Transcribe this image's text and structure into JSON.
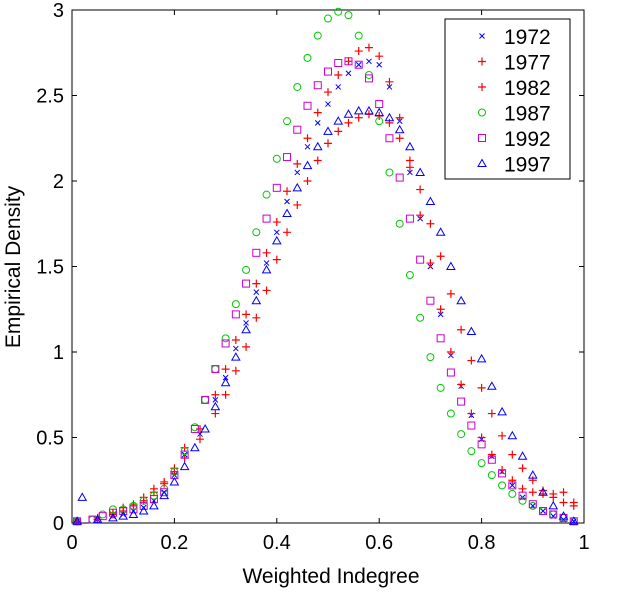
{
  "chart_data": {
    "type": "scatter",
    "title": "",
    "xlabel": "Weighted Indegree",
    "ylabel": "Empirical Density",
    "xlim": [
      0,
      1
    ],
    "ylim": [
      0,
      3
    ],
    "xticks": [
      0,
      0.2,
      0.4,
      0.6,
      0.8,
      1
    ],
    "xtick_labels": [
      "0",
      "0.2",
      "0.4",
      "0.6",
      "0.8",
      "1"
    ],
    "yticks": [
      0,
      0.5,
      1,
      1.5,
      2,
      2.5,
      3
    ],
    "ytick_labels": [
      "0",
      "0.5",
      "1",
      "1.5",
      "2",
      "2.5",
      "3"
    ],
    "grid": false,
    "legend_position": "top-right",
    "series": [
      {
        "name": "1972",
        "marker": "x",
        "color": "#0000ff",
        "points": [
          [
            0.01,
            0.01
          ],
          [
            0.05,
            0.02
          ],
          [
            0.08,
            0.04
          ],
          [
            0.1,
            0.05
          ],
          [
            0.12,
            0.07
          ],
          [
            0.14,
            0.09
          ],
          [
            0.16,
            0.13
          ],
          [
            0.18,
            0.18
          ],
          [
            0.2,
            0.28
          ],
          [
            0.22,
            0.4
          ],
          [
            0.25,
            0.52
          ],
          [
            0.28,
            0.72
          ],
          [
            0.3,
            0.85
          ],
          [
            0.32,
            1.02
          ],
          [
            0.34,
            1.17
          ],
          [
            0.36,
            1.35
          ],
          [
            0.38,
            1.52
          ],
          [
            0.4,
            1.7
          ],
          [
            0.42,
            1.88
          ],
          [
            0.44,
            2.05
          ],
          [
            0.46,
            2.2
          ],
          [
            0.48,
            2.34
          ],
          [
            0.5,
            2.45
          ],
          [
            0.52,
            2.55
          ],
          [
            0.54,
            2.63
          ],
          [
            0.56,
            2.68
          ],
          [
            0.58,
            2.7
          ],
          [
            0.6,
            2.68
          ],
          [
            0.62,
            2.55
          ],
          [
            0.64,
            2.35
          ],
          [
            0.66,
            2.05
          ],
          [
            0.68,
            1.78
          ],
          [
            0.7,
            1.5
          ],
          [
            0.72,
            1.22
          ],
          [
            0.74,
            0.98
          ],
          [
            0.76,
            0.8
          ],
          [
            0.78,
            0.63
          ],
          [
            0.8,
            0.49
          ],
          [
            0.82,
            0.39
          ],
          [
            0.84,
            0.3
          ],
          [
            0.86,
            0.22
          ],
          [
            0.88,
            0.15
          ],
          [
            0.9,
            0.1
          ],
          [
            0.92,
            0.07
          ],
          [
            0.94,
            0.04
          ],
          [
            0.96,
            0.02
          ],
          [
            0.98,
            0.01
          ]
        ]
      },
      {
        "name": "1977",
        "marker": "+",
        "color": "#ff0000",
        "points": [
          [
            0.01,
            0.01
          ],
          [
            0.05,
            0.02
          ],
          [
            0.08,
            0.05
          ],
          [
            0.1,
            0.07
          ],
          [
            0.12,
            0.1
          ],
          [
            0.14,
            0.13
          ],
          [
            0.16,
            0.18
          ],
          [
            0.18,
            0.24
          ],
          [
            0.2,
            0.32
          ],
          [
            0.22,
            0.44
          ],
          [
            0.25,
            0.55
          ],
          [
            0.28,
            0.75
          ],
          [
            0.3,
            0.9
          ],
          [
            0.32,
            1.07
          ],
          [
            0.34,
            1.22
          ],
          [
            0.36,
            1.4
          ],
          [
            0.38,
            1.58
          ],
          [
            0.4,
            1.76
          ],
          [
            0.42,
            1.94
          ],
          [
            0.44,
            2.1
          ],
          [
            0.46,
            2.25
          ],
          [
            0.48,
            2.4
          ],
          [
            0.5,
            2.52
          ],
          [
            0.52,
            2.62
          ],
          [
            0.54,
            2.7
          ],
          [
            0.56,
            2.76
          ],
          [
            0.58,
            2.78
          ],
          [
            0.6,
            2.73
          ],
          [
            0.62,
            2.58
          ],
          [
            0.64,
            2.37
          ],
          [
            0.66,
            2.08
          ],
          [
            0.68,
            1.8
          ],
          [
            0.7,
            1.52
          ],
          [
            0.72,
            1.25
          ],
          [
            0.74,
            1.0
          ],
          [
            0.76,
            0.81
          ],
          [
            0.78,
            0.64
          ],
          [
            0.8,
            0.5
          ],
          [
            0.82,
            0.4
          ],
          [
            0.84,
            0.31
          ],
          [
            0.86,
            0.25
          ],
          [
            0.88,
            0.2
          ],
          [
            0.9,
            0.18
          ],
          [
            0.92,
            0.17
          ],
          [
            0.94,
            0.17
          ],
          [
            0.96,
            0.18
          ],
          [
            0.98,
            0.12
          ]
        ]
      },
      {
        "name": "1982",
        "marker": "+",
        "color": "#ff0000",
        "points": [
          [
            0.01,
            0.01
          ],
          [
            0.05,
            0.03
          ],
          [
            0.08,
            0.06
          ],
          [
            0.1,
            0.09
          ],
          [
            0.12,
            0.11
          ],
          [
            0.14,
            0.15
          ],
          [
            0.16,
            0.2
          ],
          [
            0.18,
            0.23
          ],
          [
            0.2,
            0.3
          ],
          [
            0.22,
            0.38
          ],
          [
            0.25,
            0.49
          ],
          [
            0.28,
            0.64
          ],
          [
            0.3,
            0.75
          ],
          [
            0.32,
            0.89
          ],
          [
            0.34,
            1.03
          ],
          [
            0.36,
            1.2
          ],
          [
            0.38,
            1.36
          ],
          [
            0.4,
            1.54
          ],
          [
            0.42,
            1.7
          ],
          [
            0.44,
            1.86
          ],
          [
            0.46,
            2.0
          ],
          [
            0.48,
            2.12
          ],
          [
            0.5,
            2.22
          ],
          [
            0.52,
            2.29
          ],
          [
            0.54,
            2.34
          ],
          [
            0.56,
            2.37
          ],
          [
            0.58,
            2.39
          ],
          [
            0.6,
            2.38
          ],
          [
            0.62,
            2.34
          ],
          [
            0.64,
            2.25
          ],
          [
            0.66,
            2.12
          ],
          [
            0.68,
            1.95
          ],
          [
            0.7,
            1.75
          ],
          [
            0.72,
            1.56
          ],
          [
            0.74,
            1.34
          ],
          [
            0.76,
            1.13
          ],
          [
            0.78,
            0.95
          ],
          [
            0.8,
            0.79
          ],
          [
            0.82,
            0.64
          ],
          [
            0.84,
            0.51
          ],
          [
            0.86,
            0.4
          ],
          [
            0.88,
            0.32
          ],
          [
            0.9,
            0.25
          ],
          [
            0.92,
            0.19
          ],
          [
            0.94,
            0.15
          ],
          [
            0.96,
            0.12
          ],
          [
            0.98,
            0.1
          ]
        ]
      },
      {
        "name": "1987",
        "marker": "o",
        "color": "#00cc00",
        "points": [
          [
            0.01,
            0.01
          ],
          [
            0.04,
            0.02
          ],
          [
            0.06,
            0.05
          ],
          [
            0.08,
            0.08
          ],
          [
            0.1,
            0.08
          ],
          [
            0.12,
            0.1
          ],
          [
            0.14,
            0.13
          ],
          [
            0.16,
            0.16
          ],
          [
            0.18,
            0.2
          ],
          [
            0.2,
            0.3
          ],
          [
            0.22,
            0.42
          ],
          [
            0.24,
            0.56
          ],
          [
            0.26,
            0.72
          ],
          [
            0.28,
            0.9
          ],
          [
            0.3,
            1.08
          ],
          [
            0.32,
            1.28
          ],
          [
            0.34,
            1.48
          ],
          [
            0.36,
            1.7
          ],
          [
            0.38,
            1.92
          ],
          [
            0.4,
            2.13
          ],
          [
            0.42,
            2.35
          ],
          [
            0.44,
            2.55
          ],
          [
            0.46,
            2.72
          ],
          [
            0.48,
            2.85
          ],
          [
            0.5,
            2.95
          ],
          [
            0.52,
            2.99
          ],
          [
            0.54,
            2.97
          ],
          [
            0.56,
            2.85
          ],
          [
            0.58,
            2.62
          ],
          [
            0.6,
            2.35
          ],
          [
            0.62,
            2.05
          ],
          [
            0.64,
            1.75
          ],
          [
            0.66,
            1.45
          ],
          [
            0.68,
            1.2
          ],
          [
            0.7,
            0.97
          ],
          [
            0.72,
            0.79
          ],
          [
            0.74,
            0.64
          ],
          [
            0.76,
            0.52
          ],
          [
            0.78,
            0.42
          ],
          [
            0.8,
            0.35
          ],
          [
            0.82,
            0.28
          ],
          [
            0.84,
            0.22
          ],
          [
            0.86,
            0.17
          ],
          [
            0.88,
            0.13
          ],
          [
            0.9,
            0.1
          ],
          [
            0.92,
            0.07
          ],
          [
            0.94,
            0.05
          ],
          [
            0.96,
            0.03
          ]
        ]
      },
      {
        "name": "1992",
        "marker": "square",
        "color": "#cc00cc",
        "points": [
          [
            0.01,
            0.01
          ],
          [
            0.04,
            0.02
          ],
          [
            0.06,
            0.04
          ],
          [
            0.08,
            0.06
          ],
          [
            0.1,
            0.07
          ],
          [
            0.12,
            0.08
          ],
          [
            0.14,
            0.1
          ],
          [
            0.16,
            0.14
          ],
          [
            0.18,
            0.18
          ],
          [
            0.2,
            0.28
          ],
          [
            0.22,
            0.4
          ],
          [
            0.24,
            0.55
          ],
          [
            0.26,
            0.72
          ],
          [
            0.28,
            0.9
          ],
          [
            0.3,
            1.05
          ],
          [
            0.32,
            1.22
          ],
          [
            0.34,
            1.4
          ],
          [
            0.36,
            1.58
          ],
          [
            0.38,
            1.78
          ],
          [
            0.4,
            1.96
          ],
          [
            0.42,
            2.14
          ],
          [
            0.44,
            2.3
          ],
          [
            0.46,
            2.44
          ],
          [
            0.48,
            2.56
          ],
          [
            0.5,
            2.64
          ],
          [
            0.52,
            2.69
          ],
          [
            0.54,
            2.7
          ],
          [
            0.56,
            2.68
          ],
          [
            0.58,
            2.6
          ],
          [
            0.6,
            2.45
          ],
          [
            0.62,
            2.25
          ],
          [
            0.64,
            2.02
          ],
          [
            0.66,
            1.78
          ],
          [
            0.68,
            1.54
          ],
          [
            0.7,
            1.3
          ],
          [
            0.72,
            1.08
          ],
          [
            0.74,
            0.88
          ],
          [
            0.76,
            0.71
          ],
          [
            0.78,
            0.57
          ],
          [
            0.8,
            0.46
          ],
          [
            0.82,
            0.37
          ],
          [
            0.84,
            0.29
          ],
          [
            0.86,
            0.22
          ],
          [
            0.88,
            0.16
          ],
          [
            0.9,
            0.11
          ],
          [
            0.92,
            0.07
          ],
          [
            0.94,
            0.05
          ],
          [
            0.96,
            0.03
          ],
          [
            0.98,
            0.01
          ]
        ]
      },
      {
        "name": "1997",
        "marker": "triangle",
        "color": "#0000ff",
        "points": [
          [
            0.01,
            0.01
          ],
          [
            0.02,
            0.15
          ],
          [
            0.05,
            0.02
          ],
          [
            0.08,
            0.03
          ],
          [
            0.1,
            0.04
          ],
          [
            0.12,
            0.05
          ],
          [
            0.14,
            0.07
          ],
          [
            0.16,
            0.1
          ],
          [
            0.18,
            0.16
          ],
          [
            0.2,
            0.24
          ],
          [
            0.22,
            0.33
          ],
          [
            0.24,
            0.44
          ],
          [
            0.26,
            0.55
          ],
          [
            0.28,
            0.68
          ],
          [
            0.3,
            0.82
          ],
          [
            0.32,
            0.97
          ],
          [
            0.34,
            1.13
          ],
          [
            0.36,
            1.3
          ],
          [
            0.38,
            1.48
          ],
          [
            0.4,
            1.65
          ],
          [
            0.42,
            1.81
          ],
          [
            0.44,
            1.96
          ],
          [
            0.46,
            2.09
          ],
          [
            0.48,
            2.2
          ],
          [
            0.5,
            2.29
          ],
          [
            0.52,
            2.35
          ],
          [
            0.54,
            2.39
          ],
          [
            0.56,
            2.41
          ],
          [
            0.58,
            2.41
          ],
          [
            0.6,
            2.4
          ],
          [
            0.62,
            2.37
          ],
          [
            0.64,
            2.3
          ],
          [
            0.66,
            2.2
          ],
          [
            0.68,
            2.05
          ],
          [
            0.7,
            1.88
          ],
          [
            0.72,
            1.7
          ],
          [
            0.74,
            1.5
          ],
          [
            0.76,
            1.3
          ],
          [
            0.78,
            1.12
          ],
          [
            0.8,
            0.96
          ],
          [
            0.82,
            0.8
          ],
          [
            0.84,
            0.65
          ],
          [
            0.86,
            0.51
          ],
          [
            0.88,
            0.39
          ],
          [
            0.9,
            0.28
          ],
          [
            0.92,
            0.18
          ],
          [
            0.94,
            0.1
          ],
          [
            0.96,
            0.04
          ],
          [
            0.98,
            0.01
          ]
        ]
      }
    ]
  }
}
